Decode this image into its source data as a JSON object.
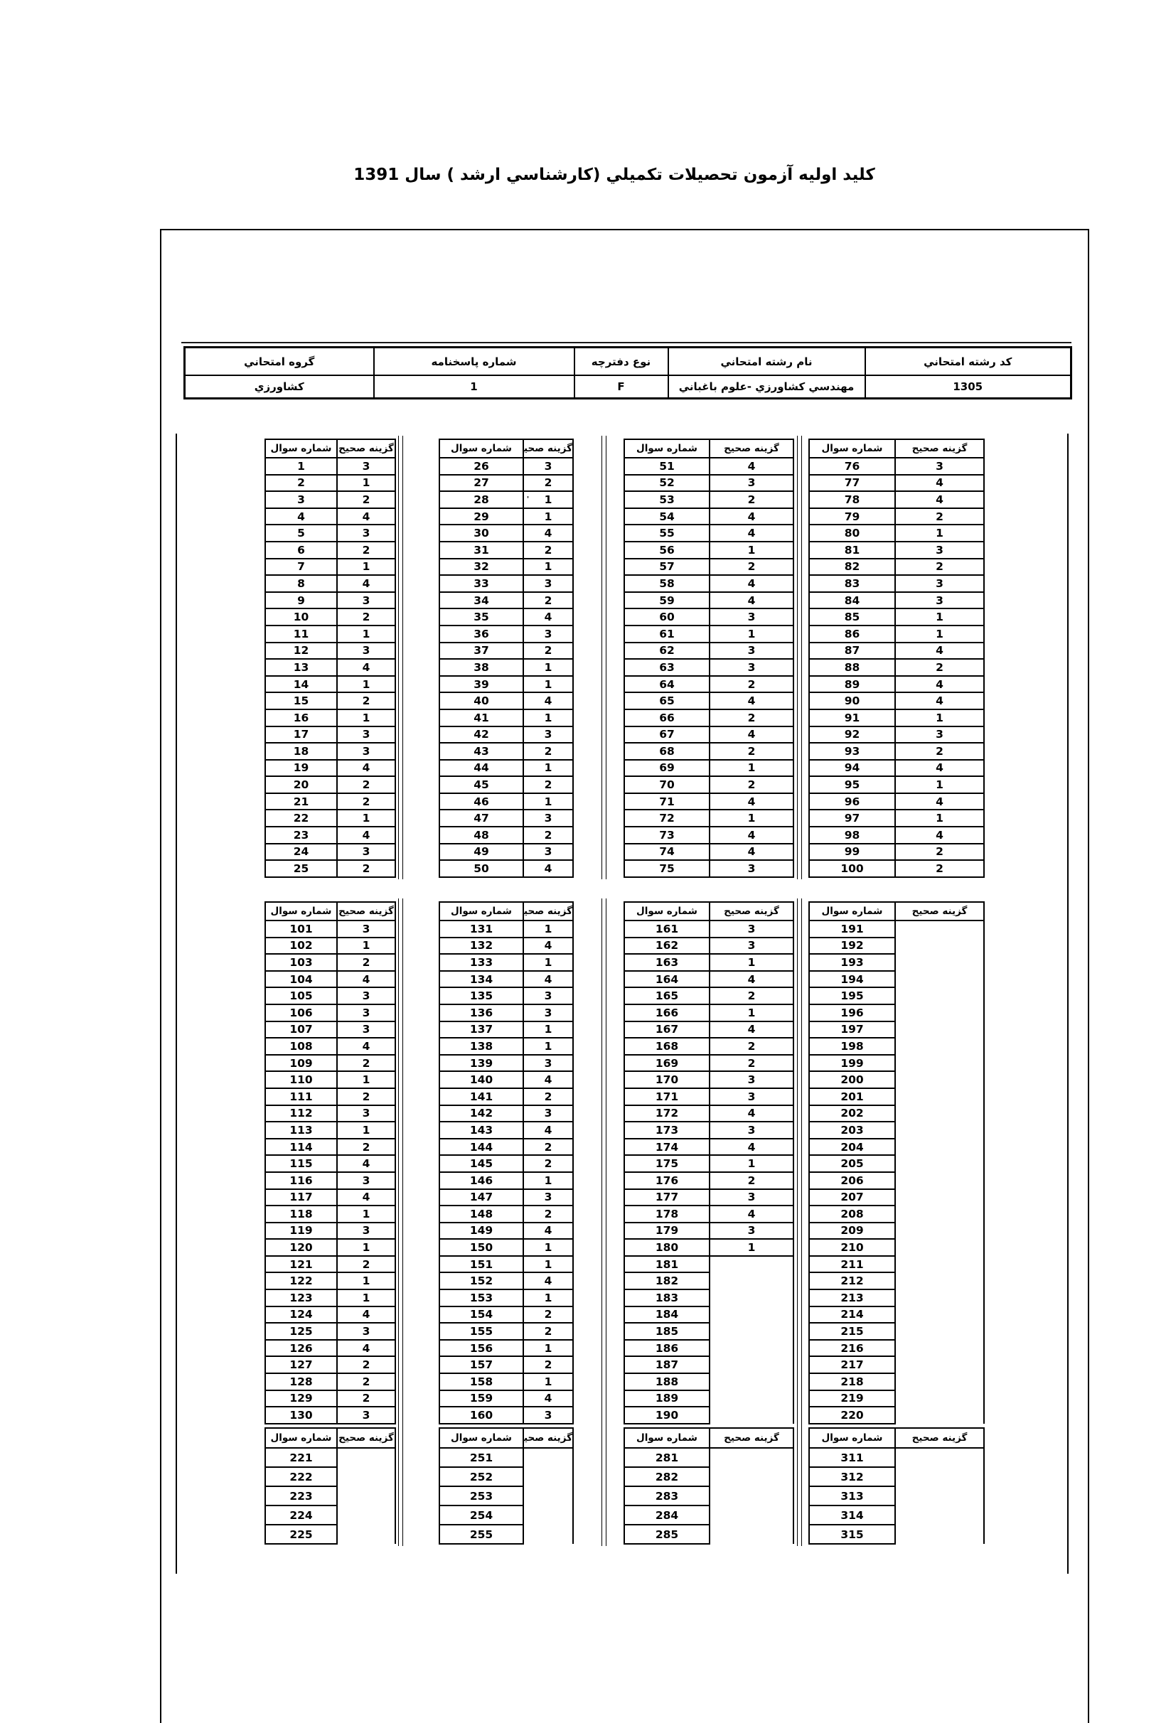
{
  "page": {
    "title": "كليد اوليه آزمون تحصيلات تكميلي (كارشناسي ارشد ) سال 1391"
  },
  "info_table": {
    "columns": [
      {
        "label": "كد رشته امتحاني",
        "value": "1305"
      },
      {
        "label": "نام رشته امتحاني",
        "value": "مهندسي كشاورزي -علوم باغباني"
      },
      {
        "label": "نوع دفترچه",
        "value": "F"
      },
      {
        "label": "شماره پاسخنامه",
        "value": "1"
      },
      {
        "label": "گروه امتحاني",
        "value": "كشاورزي"
      }
    ]
  },
  "answer_key": {
    "col_question": "شماره سوال",
    "col_answer": "گزينه صحيح",
    "tables": [
      {
        "groups": [
          {
            "questions": [
              1,
              2,
              3,
              4,
              5,
              6,
              7,
              8,
              9,
              10,
              11,
              12,
              13,
              14,
              15,
              16,
              17,
              18,
              19,
              20,
              21,
              22,
              23,
              24,
              25
            ],
            "answers": [
              "3",
              "1",
              "2",
              "4",
              "3",
              "2",
              "1",
              "4",
              "3",
              "2",
              "1",
              "3",
              "4",
              "1",
              "2",
              "1",
              "3",
              "3",
              "4",
              "2",
              "2",
              "1",
              "4",
              "3",
              "2"
            ]
          },
          {
            "questions": [
              26,
              27,
              28,
              29,
              30,
              31,
              32,
              33,
              34,
              35,
              36,
              37,
              38,
              39,
              40,
              41,
              42,
              43,
              44,
              45,
              46,
              47,
              48,
              49,
              50
            ],
            "answers": [
              "3",
              "2",
              "1",
              "1",
              "4",
              "2",
              "1",
              "3",
              "2",
              "4",
              "3",
              "2",
              "1",
              "1",
              "4",
              "1",
              "3",
              "2",
              "1",
              "2",
              "1",
              "3",
              "2",
              "3",
              "4"
            ]
          },
          {
            "questions": [
              51,
              52,
              53,
              54,
              55,
              56,
              57,
              58,
              59,
              60,
              61,
              62,
              63,
              64,
              65,
              66,
              67,
              68,
              69,
              70,
              71,
              72,
              73,
              74,
              75
            ],
            "answers": [
              "4",
              "3",
              "2",
              "4",
              "4",
              "1",
              "2",
              "4",
              "4",
              "3",
              "1",
              "3",
              "3",
              "2",
              "4",
              "2",
              "4",
              "2",
              "1",
              "2",
              "4",
              "1",
              "4",
              "4",
              "3"
            ]
          },
          {
            "questions": [
              76,
              77,
              78,
              79,
              80,
              81,
              82,
              83,
              84,
              85,
              86,
              87,
              88,
              89,
              90,
              91,
              92,
              93,
              94,
              95,
              96,
              97,
              98,
              99,
              100
            ],
            "answers": [
              "3",
              "4",
              "4",
              "2",
              "1",
              "3",
              "2",
              "3",
              "3",
              "1",
              "1",
              "4",
              "2",
              "4",
              "4",
              "1",
              "3",
              "2",
              "4",
              "1",
              "4",
              "1",
              "4",
              "2",
              "2"
            ]
          }
        ]
      },
      {
        "groups": [
          {
            "questions": [
              101,
              102,
              103,
              104,
              105,
              106,
              107,
              108,
              109,
              110,
              111,
              112,
              113,
              114,
              115,
              116,
              117,
              118,
              119,
              120,
              121,
              122,
              123,
              124,
              125,
              126,
              127,
              128,
              129,
              130
            ],
            "answers": [
              "3",
              "1",
              "2",
              "4",
              "3",
              "3",
              "3",
              "4",
              "2",
              "1",
              "2",
              "3",
              "1",
              "2",
              "4",
              "3",
              "4",
              "1",
              "3",
              "1",
              "2",
              "1",
              "1",
              "4",
              "3",
              "4",
              "2",
              "2",
              "2",
              "3"
            ]
          },
          {
            "questions": [
              131,
              132,
              133,
              134,
              135,
              136,
              137,
              138,
              139,
              140,
              141,
              142,
              143,
              144,
              145,
              146,
              147,
              148,
              149,
              150,
              151,
              152,
              153,
              154,
              155,
              156,
              157,
              158,
              159,
              160
            ],
            "answers": [
              "1",
              "4",
              "1",
              "4",
              "3",
              "3",
              "1",
              "1",
              "3",
              "4",
              "2",
              "3",
              "4",
              "2",
              "2",
              "1",
              "3",
              "2",
              "4",
              "1",
              "1",
              "4",
              "1",
              "2",
              "2",
              "1",
              "2",
              "1",
              "4",
              "3"
            ]
          },
          {
            "questions": [
              161,
              162,
              163,
              164,
              165,
              166,
              167,
              168,
              169,
              170,
              171,
              172,
              173,
              174,
              175,
              176,
              177,
              178,
              179,
              180,
              181,
              182,
              183,
              184,
              185,
              186,
              187,
              188,
              189,
              190
            ],
            "answers": [
              "3",
              "3",
              "1",
              "4",
              "2",
              "1",
              "4",
              "2",
              "2",
              "3",
              "3",
              "4",
              "3",
              "4",
              "1",
              "2",
              "3",
              "4",
              "3",
              "1",
              "",
              "",
              "",
              "",
              "",
              "",
              "",
              "",
              "",
              ""
            ]
          },
          {
            "questions": [
              191,
              192,
              193,
              194,
              195,
              196,
              197,
              198,
              199,
              200,
              201,
              202,
              203,
              204,
              205,
              206,
              207,
              208,
              209,
              210,
              211,
              212,
              213,
              214,
              215,
              216,
              217,
              218,
              219,
              220
            ],
            "answers": [
              "",
              "",
              "",
              "",
              "",
              "",
              "",
              "",
              "",
              "",
              "",
              "",
              "",
              "",
              "",
              "",
              "",
              "",
              "",
              "",
              "",
              "",
              "",
              "",
              "",
              "",
              "",
              "",
              "",
              ""
            ]
          }
        ]
      },
      {
        "groups": [
          {
            "questions": [
              221,
              222,
              223,
              224,
              225
            ],
            "answers": [
              "",
              "",
              "",
              "",
              ""
            ]
          },
          {
            "questions": [
              251,
              252,
              253,
              254,
              255
            ],
            "answers": [
              "",
              "",
              "",
              "",
              ""
            ]
          },
          {
            "questions": [
              281,
              282,
              283,
              284,
              285
            ],
            "answers": [
              "",
              "",
              "",
              "",
              ""
            ]
          },
          {
            "questions": [
              311,
              312,
              313,
              314,
              315
            ],
            "answers": [
              "",
              "",
              "",
              "",
              ""
            ]
          }
        ]
      }
    ]
  },
  "stray_mark": {
    "text": "'"
  }
}
